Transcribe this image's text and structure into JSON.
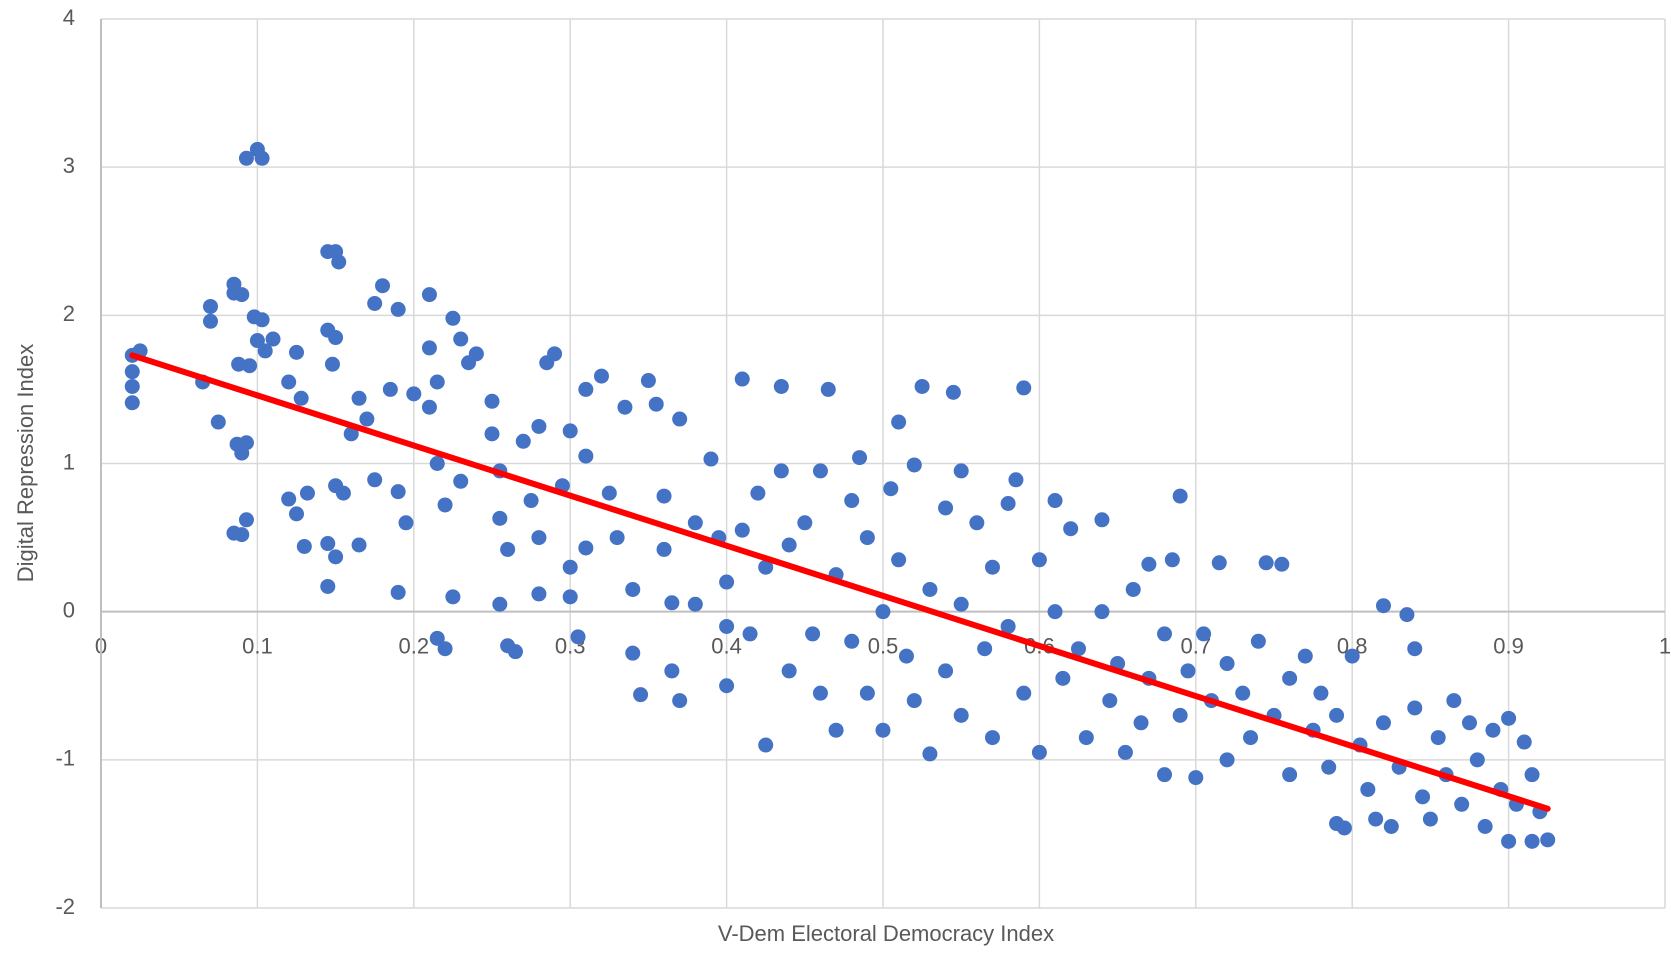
{
  "chart_data": {
    "type": "scatter",
    "x_label": "V-Dem Electoral Democracy Index",
    "y_label": "Digital Repression Index",
    "color": "#4472c4",
    "x": [
      0.02,
      0.02,
      0.02,
      0.025,
      0.02,
      0.07,
      0.07,
      0.075,
      0.065,
      0.085,
      0.085,
      0.09,
      0.087,
      0.09,
      0.093,
      0.085,
      0.09,
      0.093,
      0.095,
      0.088,
      0.093,
      0.1,
      0.103,
      0.098,
      0.103,
      0.1,
      0.105,
      0.11,
      0.12,
      0.125,
      0.12,
      0.125,
      0.13,
      0.132,
      0.128,
      0.145,
      0.15,
      0.152,
      0.145,
      0.15,
      0.148,
      0.15,
      0.145,
      0.15,
      0.145,
      0.155,
      0.165,
      0.16,
      0.17,
      0.165,
      0.175,
      0.18,
      0.175,
      0.19,
      0.185,
      0.19,
      0.19,
      0.2,
      0.195,
      0.21,
      0.21,
      0.215,
      0.21,
      0.215,
      0.22,
      0.215,
      0.22,
      0.225,
      0.23,
      0.235,
      0.24,
      0.23,
      0.225,
      0.25,
      0.25,
      0.255,
      0.255,
      0.26,
      0.255,
      0.26,
      0.265,
      0.27,
      0.275,
      0.28,
      0.28,
      0.28,
      0.285,
      0.29,
      0.3,
      0.295,
      0.3,
      0.3,
      0.31,
      0.31,
      0.31,
      0.305,
      0.32,
      0.325,
      0.33,
      0.335,
      0.34,
      0.34,
      0.345,
      0.35,
      0.355,
      0.36,
      0.36,
      0.365,
      0.365,
      0.37,
      0.37,
      0.38,
      0.38,
      0.39,
      0.395,
      0.4,
      0.4,
      0.4,
      0.41,
      0.41,
      0.415,
      0.42,
      0.425,
      0.425,
      0.435,
      0.435,
      0.44,
      0.44,
      0.45,
      0.455,
      0.46,
      0.46,
      0.465,
      0.47,
      0.47,
      0.48,
      0.48,
      0.485,
      0.49,
      0.49,
      0.5,
      0.5,
      0.505,
      0.51,
      0.51,
      0.515,
      0.52,
      0.52,
      0.525,
      0.53,
      0.53,
      0.54,
      0.54,
      0.545,
      0.55,
      0.55,
      0.55,
      0.56,
      0.565,
      0.57,
      0.57,
      0.58,
      0.58,
      0.585,
      0.59,
      0.59,
      0.6,
      0.6,
      0.61,
      0.61,
      0.615,
      0.62,
      0.625,
      0.63,
      0.64,
      0.64,
      0.645,
      0.65,
      0.655,
      0.66,
      0.665,
      0.67,
      0.67,
      0.68,
      0.68,
      0.685,
      0.69,
      0.69,
      0.695,
      0.7,
      0.705,
      0.71,
      0.715,
      0.72,
      0.72,
      0.73,
      0.735,
      0.74,
      0.745,
      0.75,
      0.755,
      0.76,
      0.76,
      0.77,
      0.775,
      0.78,
      0.785,
      0.79,
      0.79,
      0.795,
      0.8,
      0.805,
      0.81,
      0.815,
      0.82,
      0.82,
      0.825,
      0.83,
      0.835,
      0.84,
      0.84,
      0.845,
      0.85,
      0.855,
      0.86,
      0.865,
      0.87,
      0.875,
      0.88,
      0.885,
      0.89,
      0.895,
      0.9,
      0.9,
      0.905,
      0.91,
      0.915,
      0.915,
      0.92,
      0.925
    ],
    "values": [
      1.73,
      1.62,
      1.41,
      1.76,
      1.52,
      2.06,
      1.96,
      1.28,
      1.55,
      2.21,
      2.15,
      2.14,
      1.13,
      1.07,
      1.14,
      0.53,
      0.52,
      0.62,
      1.66,
      1.67,
      3.06,
      3.12,
      3.06,
      1.99,
      1.97,
      1.83,
      1.76,
      1.84,
      1.55,
      1.75,
      0.76,
      0.66,
      0.44,
      0.8,
      1.44,
      2.43,
      2.43,
      2.36,
      1.9,
      1.85,
      1.67,
      0.85,
      0.46,
      0.37,
      0.17,
      0.8,
      1.44,
      1.2,
      1.3,
      0.45,
      0.89,
      2.2,
      2.08,
      2.04,
      1.5,
      0.81,
      0.13,
      1.47,
      0.6,
      2.14,
      1.78,
      1.55,
      1.38,
      1.0,
      0.72,
      -0.18,
      -0.25,
      1.98,
      1.84,
      1.68,
      1.74,
      0.88,
      0.1,
      1.42,
      1.2,
      0.95,
      0.63,
      0.42,
      0.05,
      -0.23,
      -0.27,
      1.15,
      0.75,
      1.25,
      0.5,
      0.12,
      1.68,
      1.74,
      1.22,
      0.85,
      0.3,
      0.1,
      1.5,
      1.05,
      0.43,
      -0.17,
      1.59,
      0.8,
      0.5,
      1.38,
      0.15,
      -0.28,
      -0.56,
      1.56,
      1.4,
      0.78,
      0.42,
      0.06,
      -0.4,
      1.3,
      -0.6,
      0.6,
      0.05,
      1.03,
      0.5,
      0.2,
      -0.1,
      -0.5,
      1.57,
      0.55,
      -0.15,
      0.8,
      0.3,
      -0.9,
      1.52,
      0.95,
      0.45,
      -0.4,
      0.6,
      -0.15,
      0.95,
      -0.55,
      1.5,
      0.25,
      -0.8,
      0.75,
      -0.2,
      1.04,
      0.5,
      -0.55,
      0.0,
      -0.8,
      0.83,
      1.28,
      0.35,
      -0.3,
      0.99,
      -0.6,
      1.52,
      0.15,
      -0.96,
      0.7,
      -0.4,
      1.48,
      0.95,
      0.05,
      -0.7,
      0.6,
      -0.25,
      0.3,
      -0.85,
      0.73,
      -0.1,
      0.89,
      1.51,
      -0.55,
      0.35,
      -0.95,
      0.75,
      0.0,
      -0.45,
      0.56,
      -0.25,
      -0.85,
      0.62,
      0.0,
      -0.6,
      -0.35,
      -0.95,
      0.15,
      -0.75,
      0.32,
      -0.45,
      -0.15,
      -1.1,
      0.35,
      0.78,
      -0.7,
      -0.4,
      -1.12,
      -0.15,
      -0.6,
      0.33,
      -0.35,
      -1.0,
      -0.55,
      -0.85,
      -0.2,
      0.33,
      -0.7,
      0.32,
      -0.45,
      -1.1,
      -0.3,
      -0.8,
      -0.55,
      -1.05,
      -0.7,
      -1.43,
      -1.46,
      -0.3,
      -0.9,
      -1.2,
      -1.4,
      0.04,
      -0.75,
      -1.45,
      -1.05,
      -0.02,
      -0.25,
      -0.65,
      -1.25,
      -1.4,
      -0.85,
      -1.1,
      -0.6,
      -1.3,
      -0.75,
      -1.0,
      -1.45,
      -0.8,
      -1.2,
      -1.55,
      -0.72,
      -1.3,
      -0.88,
      -1.1,
      -1.55,
      -1.35,
      -1.54
    ],
    "trendline": {
      "x": [
        0.02,
        0.925
      ],
      "values": [
        1.73,
        -1.33
      ],
      "color": "#ff0000"
    },
    "xlim": [
      0,
      1
    ],
    "xticks": [
      0,
      0.1,
      0.2,
      0.3,
      0.4,
      0.5,
      0.6,
      0.7,
      0.8,
      0.9,
      1
    ],
    "ylim": [
      -2,
      4
    ],
    "yticks": [
      -2,
      -1,
      0,
      1,
      2,
      3,
      4
    ],
    "grid": true
  }
}
